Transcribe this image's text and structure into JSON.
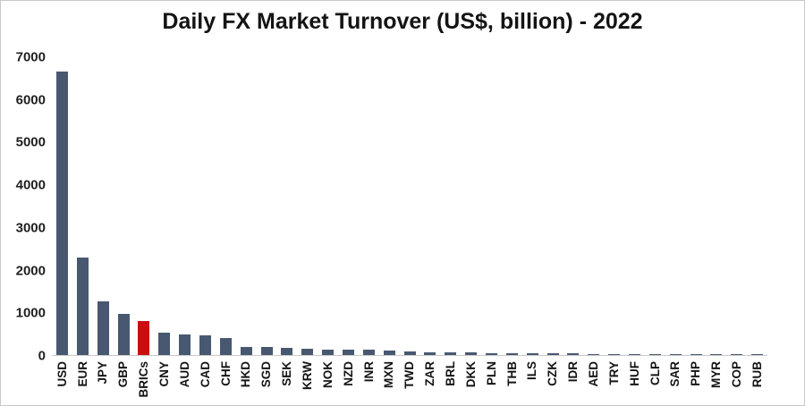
{
  "title": "Daily FX Market Turnover (US$, billion) - 2022",
  "chart_data": {
    "type": "bar",
    "title": "Daily FX Market Turnover (US$, billion) - 2022",
    "xlabel": "",
    "ylabel": "",
    "ylim": [
      0,
      7000
    ],
    "yticks": [
      0,
      1000,
      2000,
      3000,
      4000,
      5000,
      6000,
      7000
    ],
    "grid": false,
    "legend": false,
    "bar_color": "#485870",
    "highlight_color": "#cc0d0d",
    "highlight_category": "BRICs",
    "categories": [
      "USD",
      "EUR",
      "JPY",
      "GBP",
      "BRICs",
      "CNY",
      "AUD",
      "CAD",
      "CHF",
      "HKD",
      "SGD",
      "SEK",
      "KRW",
      "NOK",
      "NZD",
      "INR",
      "MXN",
      "TWD",
      "ZAR",
      "BRL",
      "DKK",
      "PLN",
      "THB",
      "ILS",
      "CZK",
      "IDR",
      "AED",
      "TRY",
      "HUF",
      "CLP",
      "SAR",
      "PHP",
      "MYR",
      "COP",
      "RUB"
    ],
    "values": [
      6639,
      2292,
      1253,
      968,
      800,
      526,
      479,
      466,
      390,
      194,
      182,
      171,
      142,
      125,
      125,
      122,
      114,
      89,
      72,
      63,
      55,
      48,
      43,
      40,
      36,
      33,
      31,
      28,
      27,
      24,
      19,
      17,
      16,
      15,
      14
    ]
  },
  "colors": {
    "background": "#ffffff",
    "frame_border": "#c8c8c8",
    "axis_line": "#c9c9c9",
    "text": "#141414"
  }
}
